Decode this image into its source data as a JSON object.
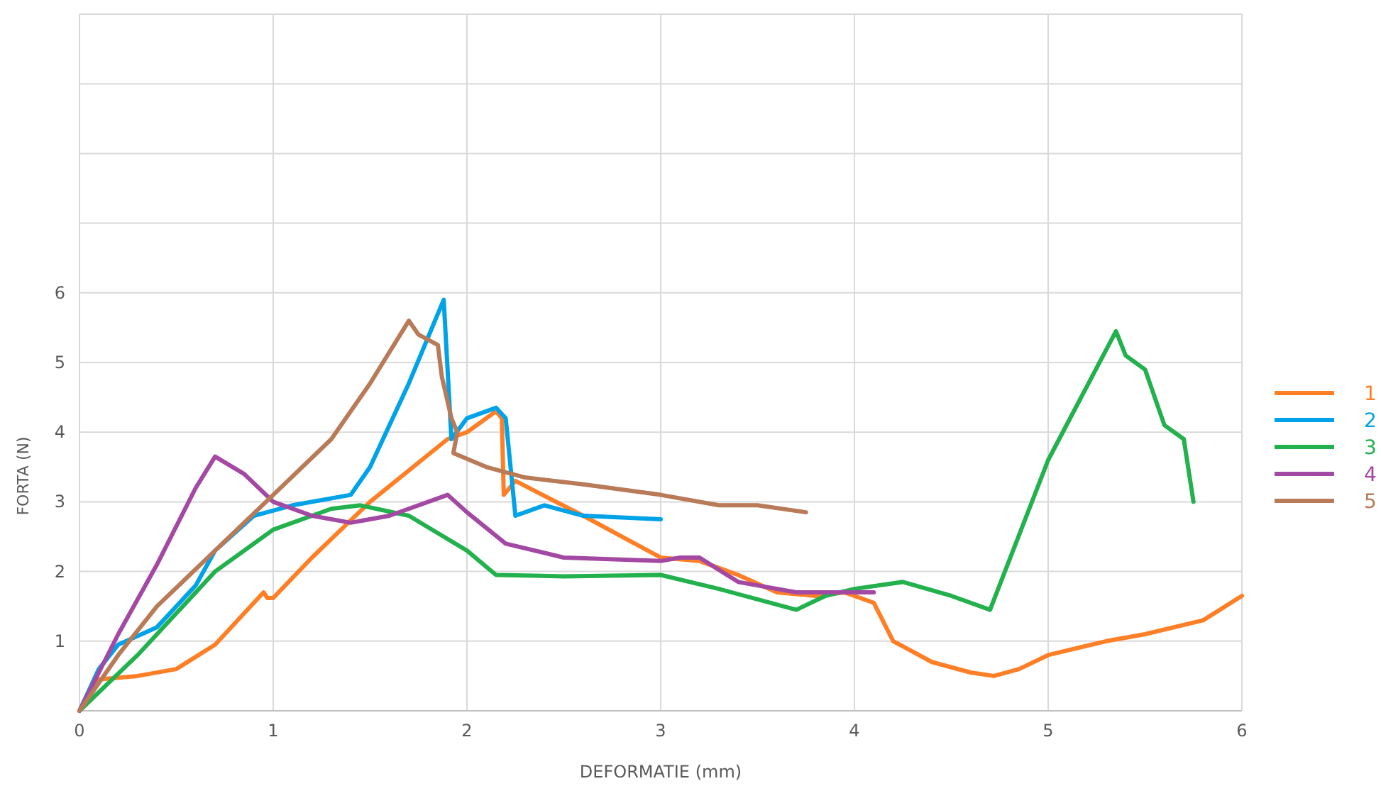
{
  "chart_data": {
    "type": "line",
    "xlabel": "DEFORMATIE (mm)",
    "ylabel": "FORTA (N)",
    "xlim": [
      0,
      6
    ],
    "ylim": [
      0,
      10
    ],
    "xticks": [
      0,
      1,
      2,
      3,
      4,
      5,
      6
    ],
    "yticks": [
      {
        "value": 0,
        "label": null
      },
      1,
      2,
      3,
      4,
      5,
      6,
      {
        "value": 7,
        "label": null
      },
      {
        "value": 8,
        "label": null
      },
      {
        "value": 9,
        "label": null
      },
      {
        "value": 10,
        "label": null
      }
    ],
    "grid": true,
    "legend": "right",
    "marker": "none",
    "line_style": "solid",
    "series": [
      {
        "name": "1",
        "color": "#ff7f27",
        "x": [
          0,
          0.1,
          0.3,
          0.5,
          0.7,
          0.95,
          0.97,
          1.0,
          1.2,
          1.5,
          1.9,
          2.0,
          2.15,
          2.18,
          2.19,
          2.25,
          2.6,
          3.0,
          3.2,
          3.4,
          3.6,
          3.8,
          3.95,
          4.1,
          4.2,
          4.4,
          4.6,
          4.72,
          4.85,
          5.0,
          5.3,
          5.5,
          5.8,
          6.0
        ],
        "values": [
          0,
          0.45,
          0.5,
          0.6,
          0.95,
          1.7,
          1.62,
          1.62,
          2.2,
          3.0,
          3.9,
          4.0,
          4.3,
          4.2,
          3.1,
          3.3,
          2.8,
          2.2,
          2.15,
          1.95,
          1.7,
          1.65,
          1.7,
          1.55,
          1.0,
          0.7,
          0.55,
          0.5,
          0.6,
          0.8,
          1.0,
          1.1,
          1.3,
          1.65
        ]
      },
      {
        "name": "2",
        "color": "#00a2e8",
        "x": [
          0,
          0.1,
          0.2,
          0.4,
          0.6,
          0.7,
          0.9,
          1.1,
          1.4,
          1.5,
          1.7,
          1.88,
          1.92,
          2.0,
          2.15,
          2.2,
          2.25,
          2.4,
          2.6,
          3.0
        ],
        "values": [
          0,
          0.6,
          0.95,
          1.2,
          1.8,
          2.3,
          2.8,
          2.95,
          3.1,
          3.5,
          4.7,
          5.9,
          3.9,
          4.2,
          4.35,
          4.2,
          2.8,
          2.95,
          2.8,
          2.75
        ]
      },
      {
        "name": "3",
        "color": "#22b14c",
        "x": [
          0,
          0.3,
          0.5,
          0.7,
          1.0,
          1.3,
          1.45,
          1.7,
          2.0,
          2.15,
          2.5,
          3.0,
          3.3,
          3.7,
          3.85,
          4.0,
          4.25,
          4.5,
          4.7,
          5.0,
          5.35,
          5.4,
          5.5,
          5.6,
          5.7,
          5.75
        ],
        "values": [
          0,
          0.8,
          1.4,
          2.0,
          2.6,
          2.9,
          2.95,
          2.8,
          2.3,
          1.95,
          1.93,
          1.95,
          1.75,
          1.45,
          1.65,
          1.75,
          1.85,
          1.65,
          1.45,
          3.6,
          5.45,
          5.1,
          4.9,
          4.1,
          3.9,
          3.0
        ]
      },
      {
        "name": "4",
        "color": "#a349a4",
        "x": [
          0,
          0.2,
          0.4,
          0.6,
          0.7,
          0.85,
          1.0,
          1.2,
          1.4,
          1.6,
          1.9,
          2.0,
          2.2,
          2.5,
          3.0,
          3.1,
          3.2,
          3.4,
          3.7,
          4.1
        ],
        "values": [
          0,
          1.1,
          2.1,
          3.2,
          3.65,
          3.4,
          3.0,
          2.8,
          2.7,
          2.8,
          3.1,
          2.85,
          2.4,
          2.2,
          2.15,
          2.2,
          2.2,
          1.85,
          1.7,
          1.7
        ]
      },
      {
        "name": "5",
        "color": "#b97a57",
        "x": [
          0,
          0.2,
          0.4,
          0.7,
          1.0,
          1.3,
          1.5,
          1.7,
          1.75,
          1.85,
          1.87,
          1.92,
          1.95,
          1.93,
          2.1,
          2.3,
          2.6,
          3.0,
          3.3,
          3.5,
          3.75
        ],
        "values": [
          0,
          0.8,
          1.5,
          2.3,
          3.1,
          3.9,
          4.7,
          5.6,
          5.4,
          5.25,
          4.8,
          4.2,
          4.0,
          3.7,
          3.5,
          3.35,
          3.25,
          3.1,
          2.95,
          2.95,
          2.85
        ]
      }
    ]
  }
}
